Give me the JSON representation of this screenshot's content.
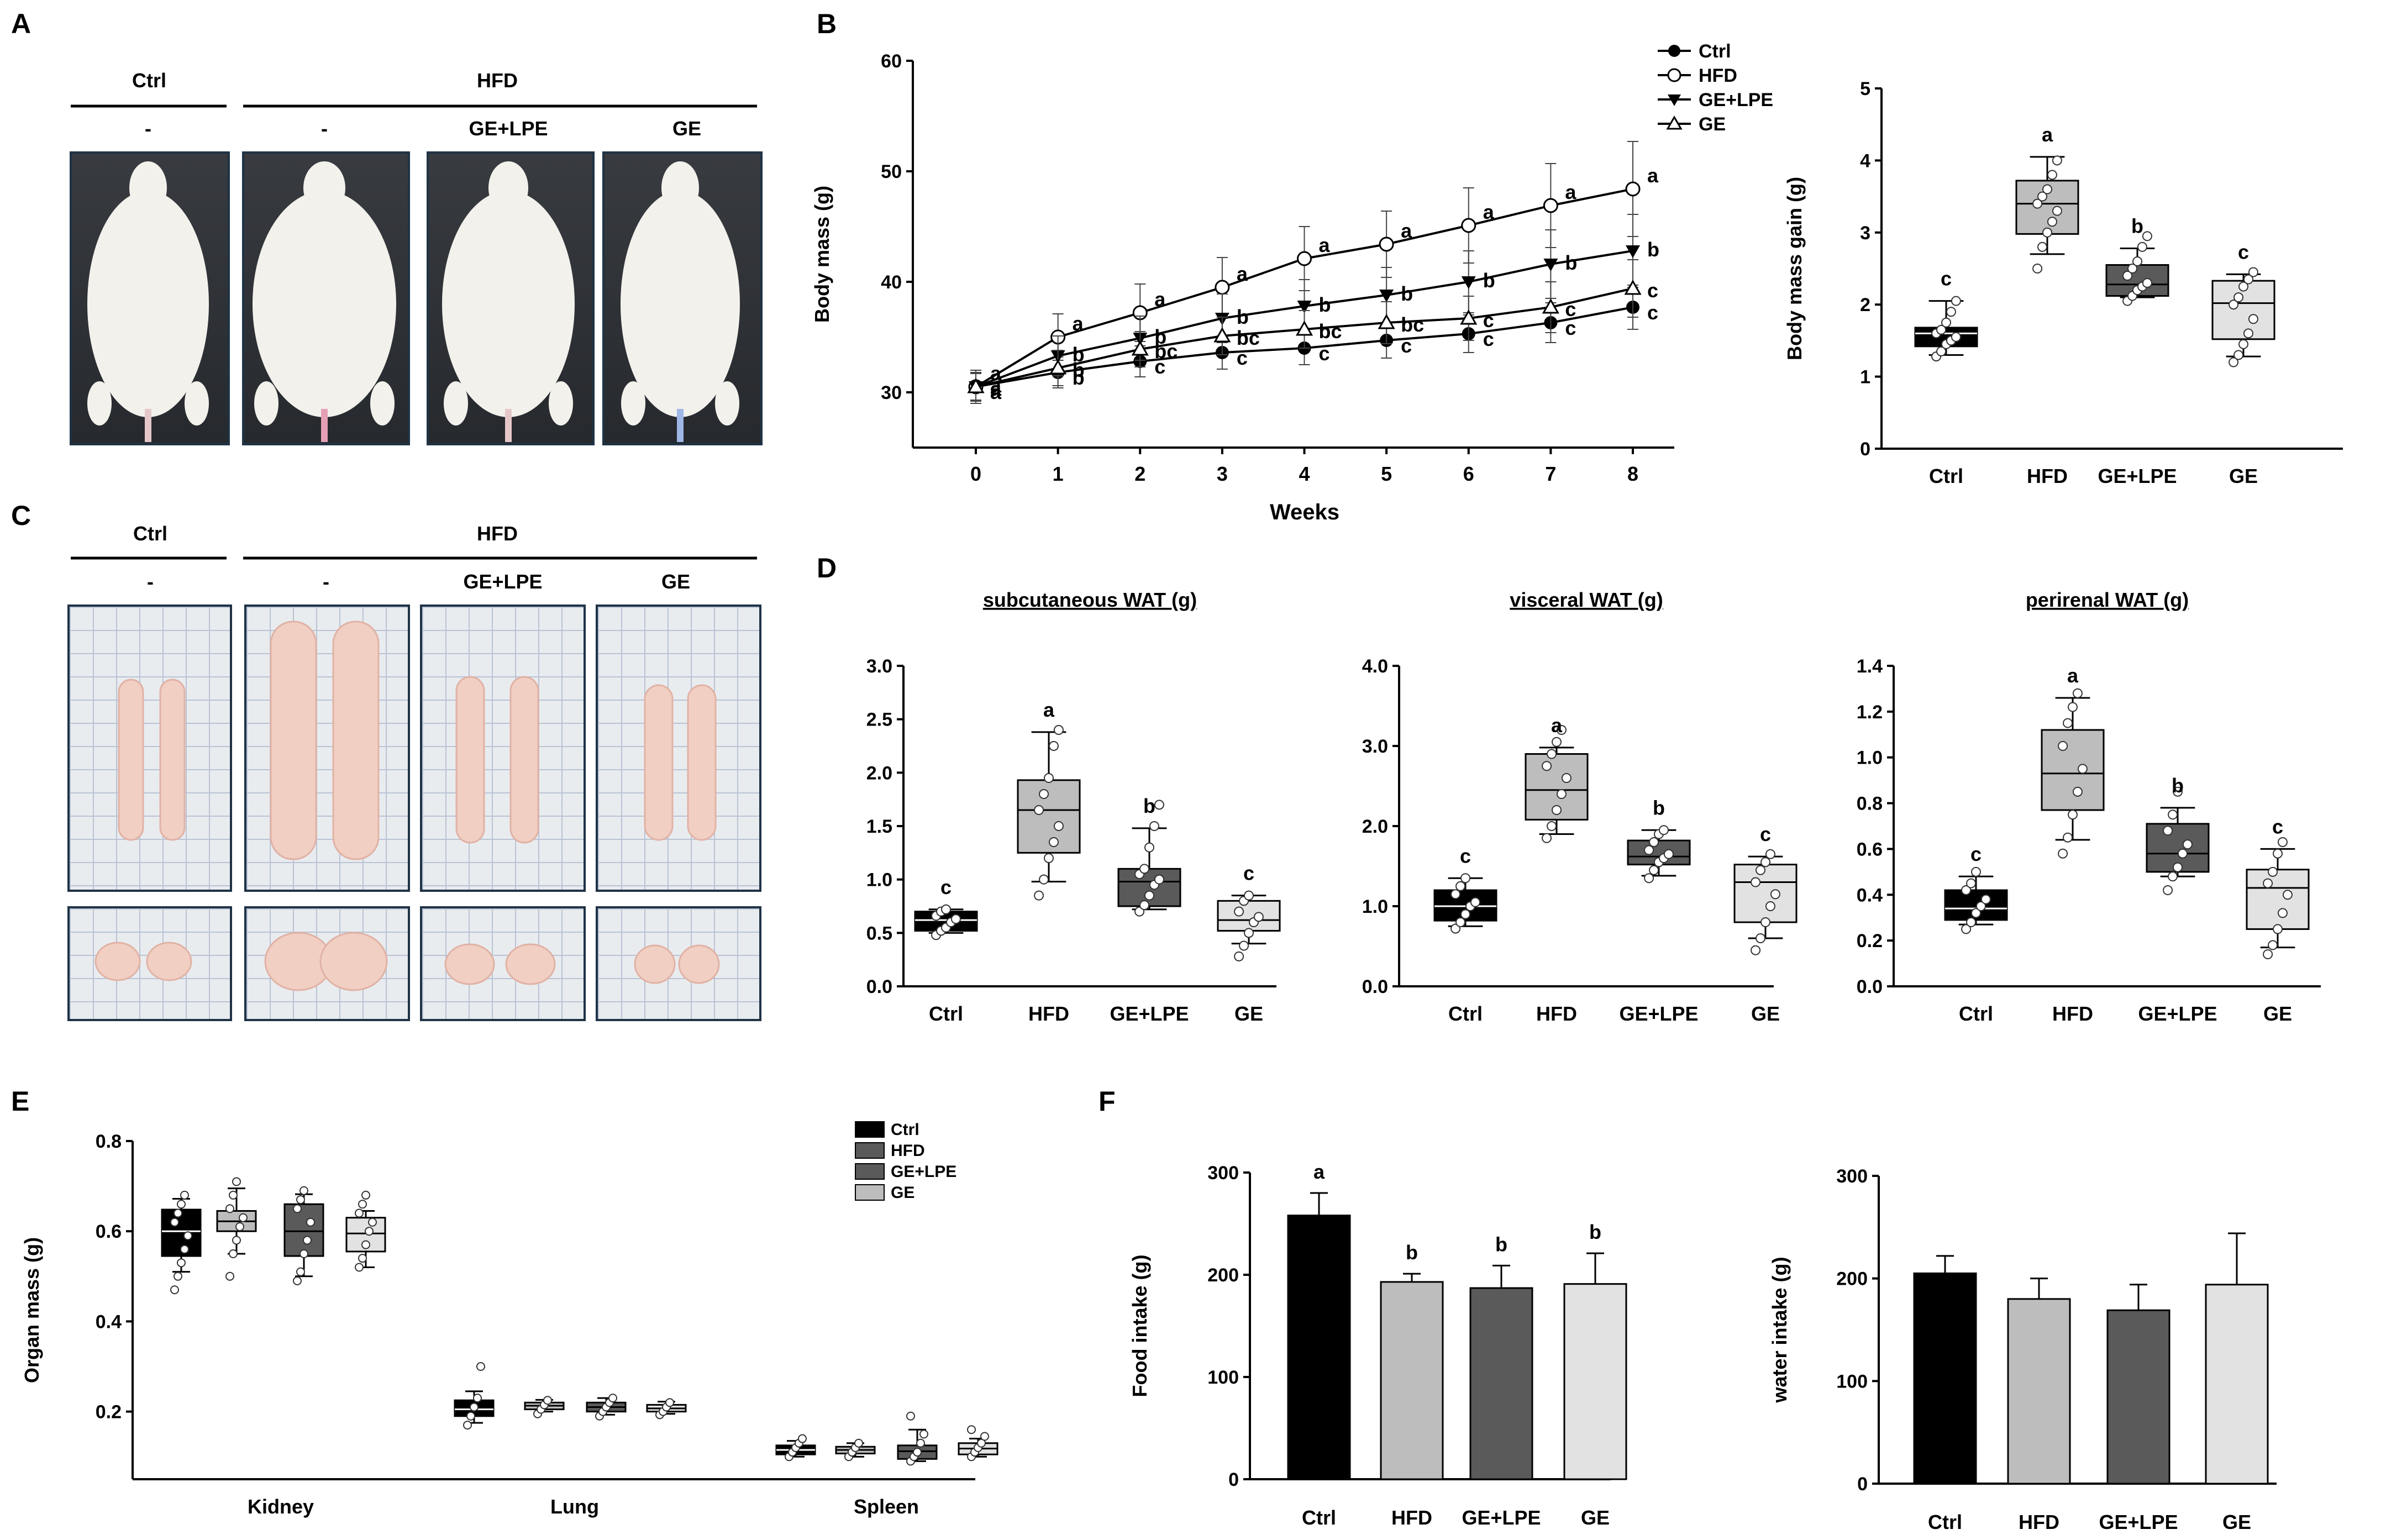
{
  "panel_letters": {
    "a": "A",
    "b": "B",
    "c": "C",
    "d": "D",
    "e": "E",
    "f": "F"
  },
  "colors": {
    "ctrl": "#000000",
    "hfd": "#bdbdbd",
    "ge_lpe": "#5a5a5a",
    "ge": "#e2e2e2"
  },
  "panel_a": {
    "group_ctrl": "Ctrl",
    "group_hfd": "HFD",
    "sub_labels": [
      "-",
      "-",
      "GE+LPE",
      "GE"
    ]
  },
  "panel_c": {
    "group_ctrl": "Ctrl",
    "group_hfd": "HFD",
    "sub_labels": [
      "-",
      "-",
      "GE+LPE",
      "GE"
    ]
  },
  "chart_data": [
    {
      "id": "B-left",
      "type": "line",
      "title": "",
      "xlabel": "Weeks",
      "ylabel": "Body mass (g)",
      "x": [
        0,
        1,
        2,
        3,
        4,
        5,
        6,
        7,
        8
      ],
      "xticks": [
        "0",
        "1",
        "2",
        "3",
        "4",
        "5",
        "6",
        "7",
        "8"
      ],
      "ylim": [
        25,
        60
      ],
      "yticks": [
        "30",
        "40",
        "50",
        "60"
      ],
      "legend_position": "top-right",
      "series": [
        {
          "name": "Ctrl",
          "marker": "filled-circle",
          "values": [
            30.5,
            31.8,
            32.8,
            33.6,
            34.0,
            34.7,
            35.3,
            36.3,
            37.7
          ],
          "err": [
            1.2,
            1.4,
            1.4,
            1.5,
            1.5,
            1.6,
            1.7,
            1.8,
            2.0
          ],
          "letters": [
            "a",
            "b",
            "c",
            "c",
            "c",
            "c",
            "c",
            "c",
            "c"
          ]
        },
        {
          "name": "HFD",
          "marker": "open-circle",
          "values": [
            30.5,
            35.0,
            37.2,
            39.5,
            42.1,
            43.4,
            45.1,
            46.9,
            48.4
          ],
          "err": [
            1.5,
            2.1,
            2.6,
            2.7,
            2.9,
            3.0,
            3.4,
            3.8,
            4.3
          ],
          "letters": [
            "a",
            "a",
            "a",
            "a",
            "a",
            "a",
            "a",
            "a",
            "a"
          ]
        },
        {
          "name": "GE+LPE",
          "marker": "filled-triangle",
          "values": [
            30.5,
            33.3,
            34.9,
            36.7,
            37.8,
            38.8,
            40.0,
            41.6,
            42.8
          ],
          "err": [
            1.3,
            1.8,
            2.0,
            2.2,
            2.4,
            2.5,
            2.8,
            3.1,
            3.3
          ],
          "letters": [
            "a",
            "b",
            "b",
            "b",
            "b",
            "b",
            "b",
            "b",
            "b"
          ]
        },
        {
          "name": "GE",
          "marker": "open-triangle",
          "values": [
            30.5,
            32.2,
            33.9,
            35.1,
            35.7,
            36.3,
            36.7,
            37.7,
            39.4
          ],
          "err": [
            1.3,
            1.6,
            1.6,
            1.7,
            1.7,
            1.9,
            2.0,
            2.3,
            2.6
          ],
          "letters": [
            "a",
            "b",
            "bc",
            "bc",
            "bc",
            "bc",
            "c",
            "c",
            "c"
          ]
        }
      ]
    },
    {
      "id": "B-right",
      "type": "box",
      "ylabel": "Body mass gain (g)",
      "ylim": [
        0,
        5
      ],
      "yticks": [
        "0",
        "1",
        "2",
        "3",
        "4",
        "5"
      ],
      "categories": [
        "Ctrl",
        "HFD",
        "GE+LPE",
        "GE"
      ],
      "boxes": [
        {
          "min": 1.3,
          "q1": 1.42,
          "median": 1.6,
          "q3": 1.68,
          "max": 2.05,
          "letter": "c",
          "points": [
            1.28,
            1.35,
            1.45,
            1.5,
            1.55,
            1.6,
            1.65,
            1.75,
            1.9,
            2.05
          ]
        },
        {
          "min": 2.7,
          "q1": 2.98,
          "median": 3.4,
          "q3": 3.72,
          "max": 4.05,
          "letter": "a",
          "points": [
            2.5,
            2.8,
            3.0,
            3.15,
            3.3,
            3.4,
            3.5,
            3.6,
            3.8,
            4.0
          ]
        },
        {
          "min": 2.1,
          "q1": 2.12,
          "median": 2.28,
          "q3": 2.55,
          "max": 2.78,
          "letter": "b",
          "points": [
            2.05,
            2.12,
            2.2,
            2.25,
            2.3,
            2.4,
            2.5,
            2.6,
            2.8,
            2.95
          ]
        },
        {
          "min": 1.28,
          "q1": 1.52,
          "median": 2.02,
          "q3": 2.33,
          "max": 2.42,
          "letter": "c",
          "points": [
            1.2,
            1.3,
            1.45,
            1.6,
            1.8,
            2.0,
            2.1,
            2.25,
            2.35,
            2.45
          ]
        }
      ]
    },
    {
      "id": "D-sub",
      "type": "box",
      "title": "subcutaneous WAT (g)",
      "ylim": [
        0,
        3
      ],
      "yticks": [
        "0.0",
        "0.5",
        "1.0",
        "1.5",
        "2.0",
        "2.5",
        "3.0"
      ],
      "categories": [
        "Ctrl",
        "HFD",
        "GE+LPE",
        "GE"
      ],
      "boxes": [
        {
          "min": 0.5,
          "q1": 0.52,
          "median": 0.62,
          "q3": 0.7,
          "max": 0.72,
          "letter": "c",
          "points": [
            0.48,
            0.52,
            0.55,
            0.6,
            0.63,
            0.66,
            0.7,
            0.72
          ]
        },
        {
          "min": 0.98,
          "q1": 1.25,
          "median": 1.65,
          "q3": 1.93,
          "max": 2.38,
          "letter": "a",
          "points": [
            0.85,
            1.0,
            1.2,
            1.35,
            1.5,
            1.65,
            1.8,
            1.95,
            2.25,
            2.4
          ]
        },
        {
          "min": 0.72,
          "q1": 0.75,
          "median": 0.98,
          "q3": 1.1,
          "max": 1.48,
          "letter": "b",
          "points": [
            0.7,
            0.76,
            0.85,
            0.95,
            1.0,
            1.05,
            1.1,
            1.3,
            1.5,
            1.7
          ]
        },
        {
          "min": 0.4,
          "q1": 0.52,
          "median": 0.62,
          "q3": 0.8,
          "max": 0.85,
          "letter": "c",
          "points": [
            0.28,
            0.38,
            0.5,
            0.6,
            0.65,
            0.7,
            0.8,
            0.85
          ]
        }
      ]
    },
    {
      "id": "D-vis",
      "type": "box",
      "title": "visceral WAT (g)",
      "ylim": [
        0,
        4
      ],
      "yticks": [
        "0.0",
        "1.0",
        "2.0",
        "3.0",
        "4.0"
      ],
      "categories": [
        "Ctrl",
        "HFD",
        "GE+LPE",
        "GE"
      ],
      "boxes": [
        {
          "min": 0.75,
          "q1": 0.82,
          "median": 1.0,
          "q3": 1.2,
          "max": 1.35,
          "letter": "c",
          "points": [
            0.72,
            0.8,
            0.9,
            1.0,
            1.05,
            1.15,
            1.25,
            1.35
          ]
        },
        {
          "min": 1.9,
          "q1": 2.08,
          "median": 2.45,
          "q3": 2.9,
          "max": 2.98,
          "letter": "a",
          "points": [
            1.85,
            2.0,
            2.2,
            2.4,
            2.6,
            2.75,
            2.9,
            3.05,
            3.2
          ]
        },
        {
          "min": 1.38,
          "q1": 1.52,
          "median": 1.62,
          "q3": 1.82,
          "max": 1.95,
          "letter": "b",
          "points": [
            1.35,
            1.45,
            1.55,
            1.6,
            1.65,
            1.7,
            1.8,
            1.9,
            1.95
          ]
        },
        {
          "min": 0.6,
          "q1": 0.8,
          "median": 1.3,
          "q3": 1.52,
          "max": 1.62,
          "letter": "c",
          "points": [
            0.45,
            0.6,
            0.8,
            1.0,
            1.15,
            1.3,
            1.45,
            1.55,
            1.65
          ]
        }
      ]
    },
    {
      "id": "D-per",
      "type": "box",
      "title": "perirenal WAT (g)",
      "ylim": [
        0,
        1.4
      ],
      "yticks": [
        "0.0",
        "0.2",
        "0.4",
        "0.6",
        "0.8",
        "1.0",
        "1.2",
        "1.4"
      ],
      "categories": [
        "Ctrl",
        "HFD",
        "GE+LPE",
        "GE"
      ],
      "boxes": [
        {
          "min": 0.27,
          "q1": 0.29,
          "median": 0.34,
          "q3": 0.42,
          "max": 0.48,
          "letter": "c",
          "points": [
            0.25,
            0.28,
            0.32,
            0.35,
            0.38,
            0.42,
            0.45,
            0.5
          ]
        },
        {
          "min": 0.64,
          "q1": 0.77,
          "median": 0.93,
          "q3": 1.12,
          "max": 1.26,
          "letter": "a",
          "points": [
            0.58,
            0.65,
            0.75,
            0.85,
            0.95,
            1.05,
            1.15,
            1.22,
            1.28
          ]
        },
        {
          "min": 0.48,
          "q1": 0.5,
          "median": 0.58,
          "q3": 0.71,
          "max": 0.78,
          "letter": "b",
          "points": [
            0.42,
            0.48,
            0.52,
            0.58,
            0.62,
            0.68,
            0.75,
            0.85
          ]
        },
        {
          "min": 0.17,
          "q1": 0.25,
          "median": 0.43,
          "q3": 0.51,
          "max": 0.6,
          "letter": "c",
          "points": [
            0.14,
            0.18,
            0.25,
            0.32,
            0.4,
            0.45,
            0.5,
            0.58,
            0.63
          ]
        }
      ]
    },
    {
      "id": "E",
      "type": "box",
      "ylabel": "Organ mass (g)",
      "ylim": [
        0.05,
        0.8
      ],
      "yticks": [
        "0.2",
        "0.4",
        "0.6",
        "0.8"
      ],
      "categories": [
        "Kidney",
        "Lung",
        "Spleen"
      ],
      "legend": [
        "Ctrl",
        "HFD",
        "GE+LPE",
        "GE"
      ],
      "legend_position": "top-right",
      "groups": [
        [
          {
            "min": 0.51,
            "q1": 0.545,
            "median": 0.6,
            "q3": 0.648,
            "max": 0.672,
            "points": [
              0.47,
              0.5,
              0.53,
              0.56,
              0.59,
              0.62,
              0.64,
              0.66,
              0.68
            ]
          },
          {
            "min": 0.55,
            "q1": 0.6,
            "median": 0.622,
            "q3": 0.645,
            "max": 0.695,
            "points": [
              0.5,
              0.55,
              0.58,
              0.61,
              0.63,
              0.65,
              0.68,
              0.71
            ]
          },
          {
            "min": 0.5,
            "q1": 0.545,
            "median": 0.6,
            "q3": 0.66,
            "max": 0.682,
            "points": [
              0.49,
              0.51,
              0.55,
              0.58,
              0.62,
              0.65,
              0.67,
              0.69
            ]
          },
          {
            "min": 0.52,
            "q1": 0.555,
            "median": 0.595,
            "q3": 0.63,
            "max": 0.645,
            "points": [
              0.52,
              0.54,
              0.57,
              0.6,
              0.62,
              0.64,
              0.66,
              0.68
            ]
          }
        ],
        [
          {
            "min": 0.175,
            "q1": 0.19,
            "median": 0.205,
            "q3": 0.225,
            "max": 0.245,
            "points": [
              0.17,
              0.19,
              0.21,
              0.23,
              0.3
            ]
          },
          {
            "min": 0.2,
            "q1": 0.205,
            "median": 0.213,
            "q3": 0.22,
            "max": 0.226,
            "points": [
              0.195,
              0.205,
              0.215,
              0.225
            ]
          },
          {
            "min": 0.193,
            "q1": 0.2,
            "median": 0.21,
            "q3": 0.22,
            "max": 0.23,
            "points": [
              0.19,
              0.2,
              0.21,
              0.22,
              0.23
            ]
          },
          {
            "min": 0.195,
            "q1": 0.2,
            "median": 0.207,
            "q3": 0.215,
            "max": 0.222,
            "points": [
              0.193,
              0.2,
              0.21,
              0.22
            ]
          }
        ],
        [
          {
            "min": 0.1,
            "q1": 0.105,
            "median": 0.115,
            "q3": 0.125,
            "max": 0.135,
            "points": [
              0.1,
              0.11,
              0.12,
              0.13,
              0.14
            ]
          },
          {
            "min": 0.1,
            "q1": 0.107,
            "median": 0.115,
            "q3": 0.122,
            "max": 0.13,
            "points": [
              0.1,
              0.11,
              0.12,
              0.13
            ]
          },
          {
            "min": 0.09,
            "q1": 0.095,
            "median": 0.112,
            "q3": 0.125,
            "max": 0.16,
            "points": [
              0.09,
              0.1,
              0.11,
              0.13,
              0.15,
              0.19
            ]
          },
          {
            "min": 0.1,
            "q1": 0.105,
            "median": 0.118,
            "q3": 0.13,
            "max": 0.14,
            "points": [
              0.1,
              0.11,
              0.12,
              0.13,
              0.145,
              0.16
            ]
          }
        ]
      ]
    },
    {
      "id": "F-food",
      "type": "bar",
      "ylabel": "Food intake (g)",
      "ylim": [
        0,
        300
      ],
      "yticks": [
        "0",
        "100",
        "200",
        "300"
      ],
      "categories": [
        "Ctrl",
        "HFD",
        "GE+LPE",
        "GE"
      ],
      "values": [
        258,
        193,
        187,
        191
      ],
      "err": [
        22,
        8,
        22,
        30
      ],
      "letters": [
        "a",
        "b",
        "b",
        "b"
      ]
    },
    {
      "id": "F-water",
      "type": "bar",
      "ylabel": "water intake (g)",
      "ylim": [
        0,
        300
      ],
      "yticks": [
        "0",
        "100",
        "200",
        "300"
      ],
      "categories": [
        "Ctrl",
        "HFD",
        "GE+LPE",
        "GE"
      ],
      "values": [
        205,
        180,
        169,
        194
      ],
      "err": [
        17,
        20,
        25,
        50
      ],
      "letters": [
        "",
        "",
        "",
        ""
      ]
    }
  ]
}
